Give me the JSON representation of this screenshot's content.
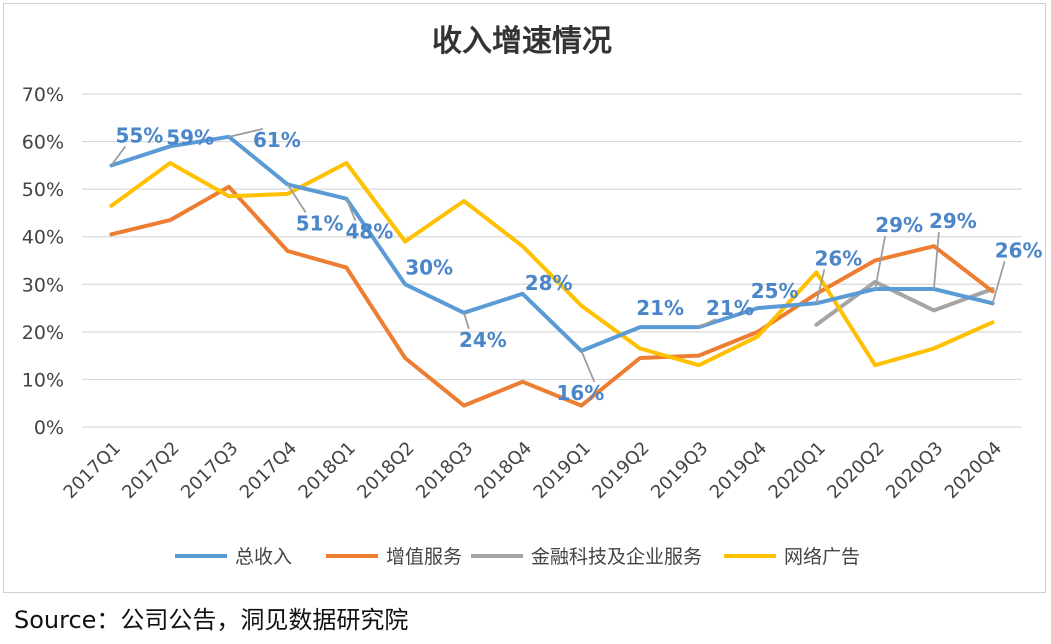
{
  "source_note": "Source：公司公告，洞见数据研究院",
  "chart_data": {
    "type": "line",
    "title": "收入增速情况",
    "xlabel": "",
    "ylabel": "",
    "ylim": [
      0,
      70
    ],
    "yticks": [
      "0%",
      "10%",
      "20%",
      "30%",
      "40%",
      "50%",
      "60%",
      "70%"
    ],
    "grid": true,
    "legend_position": "bottom",
    "categories": [
      "2017Q1",
      "2017Q2",
      "2017Q3",
      "2017Q4",
      "2018Q1",
      "2018Q2",
      "2018Q3",
      "2018Q4",
      "2019Q1",
      "2019Q2",
      "2019Q3",
      "2019Q4",
      "2020Q1",
      "2020Q2",
      "2020Q3",
      "2020Q4"
    ],
    "series": [
      {
        "name": "总收入",
        "color": "#5b9bd5",
        "values": [
          55,
          59,
          61,
          51,
          48,
          30,
          24,
          28,
          16,
          21,
          21,
          25,
          26,
          29,
          29,
          26
        ],
        "labels": [
          "55%",
          "59%",
          "61%",
          "51%",
          "48%",
          "30%",
          "24%",
          "28%",
          "16%",
          "21%",
          "21%",
          "25%",
          "26%",
          "29%",
          "29%",
          "26%"
        ]
      },
      {
        "name": "增值服务",
        "color": "#ed7d31",
        "values": [
          40.5,
          43.5,
          50.5,
          37,
          33.5,
          14.5,
          4.5,
          9.5,
          4.5,
          14.5,
          15,
          20,
          28,
          35,
          38,
          28.5
        ]
      },
      {
        "name": "金融科技及企业服务",
        "color": "#a5a5a5",
        "values": [
          null,
          null,
          null,
          null,
          null,
          null,
          null,
          null,
          null,
          null,
          null,
          null,
          21.5,
          30.5,
          24.5,
          29
        ]
      },
      {
        "name": "网络广告",
        "color": "#ffc000",
        "values": [
          46.5,
          55.5,
          48.5,
          49,
          55.5,
          39,
          47.5,
          38,
          25.5,
          16.5,
          13,
          19,
          32.5,
          13,
          16.5,
          22
        ]
      }
    ]
  }
}
